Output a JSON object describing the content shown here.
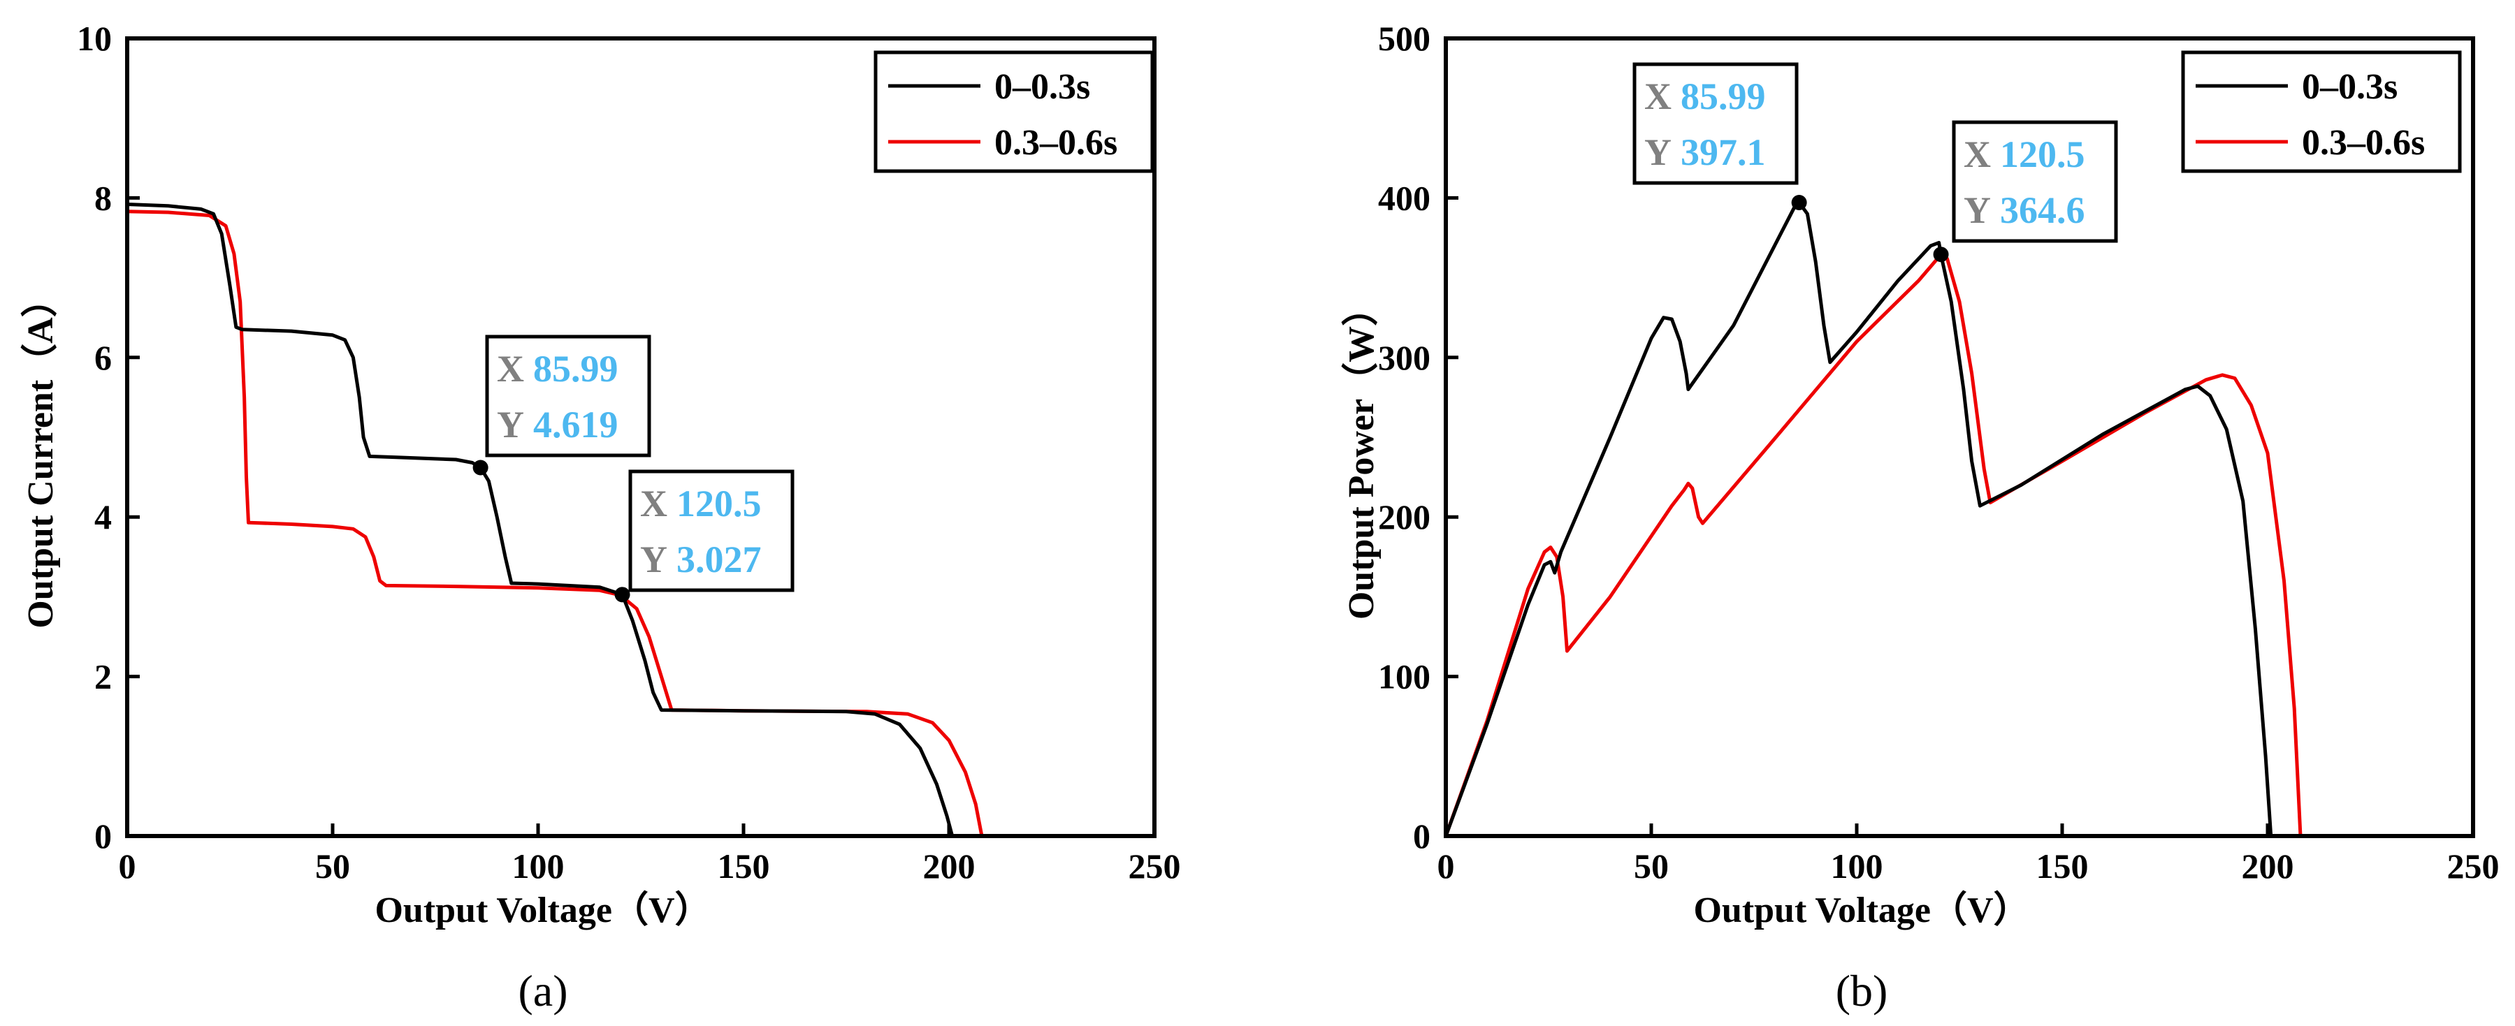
{
  "colors": {
    "series_a": "#000000",
    "series_b": "#ee0000",
    "x_label": "#808080",
    "value": "#4db8f0"
  },
  "chart_data": [
    {
      "type": "line",
      "panel_label": "(a)",
      "xlabel": "Output Voltage（V）",
      "ylabel": "Output Current（A）",
      "xlim": [
        0,
        250
      ],
      "ylim": [
        0,
        10
      ],
      "xticks": [
        "0",
        "50",
        "100",
        "150",
        "200",
        "250"
      ],
      "yticks": [
        "0",
        "2",
        "4",
        "6",
        "8",
        "10"
      ],
      "grid": false,
      "legend": {
        "position": "top-right",
        "entries": [
          "0–0.3s",
          "0.3–0.6s"
        ]
      },
      "series": [
        {
          "name": "0–0.3s",
          "points": [
            [
              0,
              7.92
            ],
            [
              10,
              7.9
            ],
            [
              18,
              7.86
            ],
            [
              21,
              7.8
            ],
            [
              23,
              7.55
            ],
            [
              25,
              6.9
            ],
            [
              26.5,
              6.38
            ],
            [
              28,
              6.35
            ],
            [
              40,
              6.33
            ],
            [
              50,
              6.28
            ],
            [
              53,
              6.22
            ],
            [
              55,
              6.0
            ],
            [
              56.5,
              5.5
            ],
            [
              57.5,
              5.0
            ],
            [
              59,
              4.76
            ],
            [
              65,
              4.75
            ],
            [
              80,
              4.72
            ],
            [
              84,
              4.68
            ],
            [
              86,
              4.619
            ],
            [
              88,
              4.45
            ],
            [
              90,
              4.0
            ],
            [
              92,
              3.5
            ],
            [
              93.5,
              3.17
            ],
            [
              100,
              3.16
            ],
            [
              115,
              3.12
            ],
            [
              120.5,
              3.027
            ],
            [
              123,
              2.7
            ],
            [
              126,
              2.2
            ],
            [
              128,
              1.8
            ],
            [
              130,
              1.58
            ],
            [
              150,
              1.57
            ],
            [
              175,
              1.56
            ],
            [
              182,
              1.53
            ],
            [
              188,
              1.4
            ],
            [
              193,
              1.1
            ],
            [
              197,
              0.65
            ],
            [
              199.5,
              0.25
            ],
            [
              200.8,
              0
            ]
          ]
        },
        {
          "name": "0.3–0.6s",
          "points": [
            [
              0,
              7.83
            ],
            [
              10,
              7.82
            ],
            [
              20,
              7.78
            ],
            [
              24,
              7.65
            ],
            [
              26,
              7.3
            ],
            [
              27.5,
              6.7
            ],
            [
              28.5,
              5.5
            ],
            [
              29,
              4.5
            ],
            [
              29.5,
              3.93
            ],
            [
              40,
              3.91
            ],
            [
              50,
              3.88
            ],
            [
              55,
              3.85
            ],
            [
              58,
              3.75
            ],
            [
              60,
              3.5
            ],
            [
              61.5,
              3.2
            ],
            [
              63,
              3.14
            ],
            [
              80,
              3.13
            ],
            [
              100,
              3.11
            ],
            [
              115,
              3.08
            ],
            [
              120,
              3.02
            ],
            [
              124,
              2.85
            ],
            [
              127,
              2.5
            ],
            [
              130,
              2.0
            ],
            [
              132.5,
              1.58
            ],
            [
              150,
              1.57
            ],
            [
              180,
              1.56
            ],
            [
              190,
              1.53
            ],
            [
              196,
              1.42
            ],
            [
              200,
              1.2
            ],
            [
              204,
              0.8
            ],
            [
              206.5,
              0.4
            ],
            [
              208,
              0
            ]
          ]
        }
      ],
      "annotations": [
        {
          "x_label": "X",
          "x_value": "85.99",
          "y_label": "Y",
          "y_value": "4.619",
          "point": [
            85.99,
            4.619
          ]
        },
        {
          "x_label": "X",
          "x_value": "120.5",
          "y_label": "Y",
          "y_value": "3.027",
          "point": [
            120.5,
            3.027
          ]
        }
      ]
    },
    {
      "type": "line",
      "panel_label": "(b)",
      "xlabel": "Output Voltage（V）",
      "ylabel": "Output Power（W）",
      "xlim": [
        0,
        250
      ],
      "ylim": [
        0,
        500
      ],
      "xticks": [
        "0",
        "50",
        "100",
        "150",
        "200",
        "250"
      ],
      "yticks": [
        "0",
        "100",
        "200",
        "300",
        "400",
        "500"
      ],
      "grid": false,
      "legend": {
        "position": "top-right",
        "entries": [
          "0–0.3s",
          "0.3–0.6s"
        ]
      },
      "series": [
        {
          "name": "0–0.3s",
          "points": [
            [
              0,
              0
            ],
            [
              10,
              70
            ],
            [
              20,
              145
            ],
            [
              24,
              170
            ],
            [
              25.5,
              172
            ],
            [
              26.5,
              165
            ],
            [
              28,
              178
            ],
            [
              40,
              250
            ],
            [
              50,
              312
            ],
            [
              53,
              325
            ],
            [
              55,
              324
            ],
            [
              57,
              310
            ],
            [
              58.5,
              290
            ],
            [
              59,
              280
            ],
            [
              70,
              320
            ],
            [
              80,
              370
            ],
            [
              85,
              395
            ],
            [
              85.99,
              397.1
            ],
            [
              88,
              390
            ],
            [
              90,
              360
            ],
            [
              92,
              320
            ],
            [
              93.5,
              297
            ],
            [
              100,
              316
            ],
            [
              110,
              348
            ],
            [
              118,
              370
            ],
            [
              120,
              372
            ],
            [
              120.5,
              364.6
            ],
            [
              123,
              335
            ],
            [
              126,
              280
            ],
            [
              128,
              235
            ],
            [
              130,
              207
            ],
            [
              140,
              220
            ],
            [
              160,
              252
            ],
            [
              180,
              280
            ],
            [
              183,
              282
            ],
            [
              186,
              276
            ],
            [
              190,
              255
            ],
            [
              194,
              210
            ],
            [
              197,
              130
            ],
            [
              199.5,
              50
            ],
            [
              200.8,
              0
            ]
          ]
        },
        {
          "name": "0.3–0.6s",
          "points": [
            [
              0,
              0
            ],
            [
              10,
              72
            ],
            [
              20,
              155
            ],
            [
              24,
              178
            ],
            [
              25.5,
              181
            ],
            [
              27,
              175
            ],
            [
              28.5,
              150
            ],
            [
              29.5,
              116
            ],
            [
              40,
              150
            ],
            [
              50,
              188
            ],
            [
              55,
              207
            ],
            [
              58,
              217
            ],
            [
              59,
              221
            ],
            [
              60,
              218
            ],
            [
              61.5,
              200
            ],
            [
              62.5,
              196
            ],
            [
              80,
              249
            ],
            [
              100,
              310
            ],
            [
              115,
              348
            ],
            [
              120,
              363
            ],
            [
              122,
              362
            ],
            [
              125,
              335
            ],
            [
              128,
              290
            ],
            [
              131,
              230
            ],
            [
              132.5,
              209
            ],
            [
              150,
              235
            ],
            [
              170,
              265
            ],
            [
              185,
              286
            ],
            [
              189,
              289
            ],
            [
              192,
              287
            ],
            [
              196,
              270
            ],
            [
              200,
              240
            ],
            [
              204,
              160
            ],
            [
              206.5,
              80
            ],
            [
              208,
              0
            ]
          ]
        }
      ],
      "annotations": [
        {
          "x_label": "X",
          "x_value": "85.99",
          "y_label": "Y",
          "y_value": "397.1",
          "point": [
            85.99,
            397.1
          ]
        },
        {
          "x_label": "X",
          "x_value": "120.5",
          "y_label": "Y",
          "y_value": "364.6",
          "point": [
            120.5,
            364.6
          ]
        }
      ]
    }
  ]
}
